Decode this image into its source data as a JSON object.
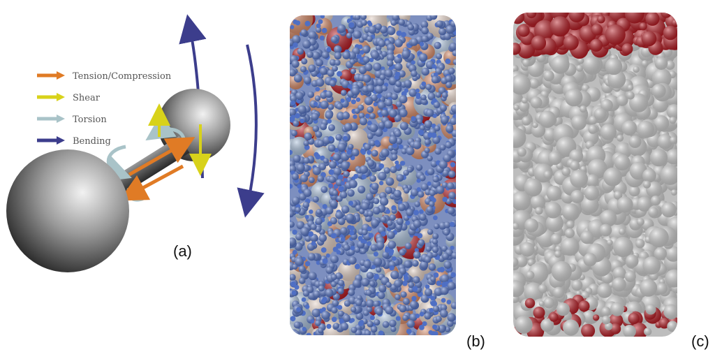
{
  "panels": {
    "a": {
      "label": "(a)"
    },
    "b": {
      "label": "(b)"
    },
    "c": {
      "label": "(c)"
    }
  },
  "legend": {
    "items": [
      {
        "label": "Tension/Compression",
        "color": "#e07b25"
      },
      {
        "label": "Shear",
        "color": "#d8d21a"
      },
      {
        "label": "Torsion",
        "color": "#a9c3c8"
      },
      {
        "label": "Bending",
        "color": "#3c3d8c"
      }
    ]
  },
  "colors": {
    "blue_small": "#4f6fc4",
    "light_blue": "#a9c0dc",
    "beige": "#e3cfc3",
    "salmon": "#d98a66",
    "red_dark": "#b5141c",
    "grey": "#cfcfcf"
  }
}
